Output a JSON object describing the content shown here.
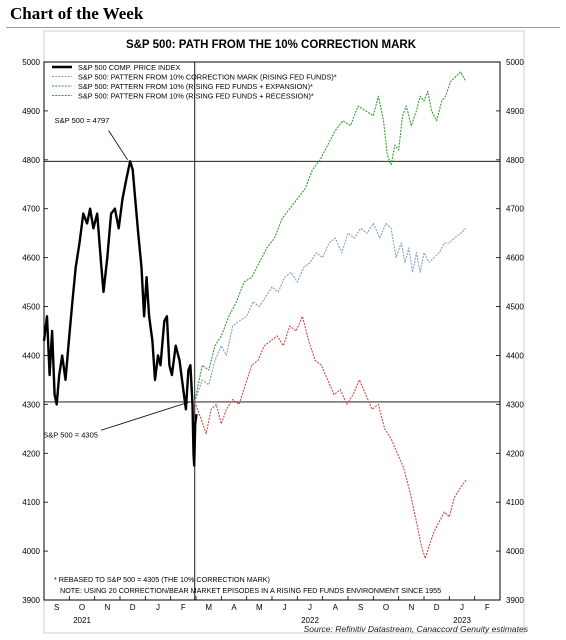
{
  "page": {
    "header": "Chart of the Week",
    "source": "Source: Refinitiv Datastream, Canaccord Genuity estimates"
  },
  "chart_data": {
    "type": "line",
    "title": "S&P 500: PATH FROM THE 10% CORRECTION MARK",
    "ylim": [
      3900,
      5000
    ],
    "yticks": [
      3900,
      4000,
      4100,
      4200,
      4300,
      4400,
      4500,
      4600,
      4700,
      4800,
      4900,
      5000
    ],
    "month_labels": [
      "S",
      "O",
      "N",
      "D",
      "J",
      "F",
      "M",
      "A",
      "M",
      "J",
      "J",
      "A",
      "S",
      "O",
      "N",
      "D",
      "J",
      "F"
    ],
    "year_labels": [
      {
        "month_index": 1,
        "text": "2021"
      },
      {
        "month_index": 10,
        "text": "2022"
      },
      {
        "month_index": 16,
        "text": "2023"
      }
    ],
    "reference_lines": {
      "horizontal": [
        4797,
        4305
      ],
      "vertical_month_index": 5.95
    },
    "annotations": [
      {
        "text": "S&P 500 = 4797",
        "month_index": 1.5,
        "value": 4875
      },
      {
        "text": "S&P 500 = 4305",
        "month_index": 1.05,
        "value": 4232
      }
    ],
    "footnotes": [
      "* REBASED TO S&P 500 = 4305 (THE 10% CORRECTION MARK)",
      "NOTE: USING 20 CORRECTION/BEAR MARKET EPISODES IN A RISING FED FUNDS ENVIRONMENT SINCE 1955"
    ],
    "series": [
      {
        "name": "S&P 500 COMP. PRICE INDEX",
        "color": "#000000",
        "points": [
          [
            0.0,
            4430
          ],
          [
            0.12,
            4480
          ],
          [
            0.22,
            4360
          ],
          [
            0.32,
            4450
          ],
          [
            0.42,
            4320
          ],
          [
            0.5,
            4300
          ],
          [
            0.6,
            4360
          ],
          [
            0.72,
            4400
          ],
          [
            0.85,
            4350
          ],
          [
            1.0,
            4440
          ],
          [
            1.12,
            4510
          ],
          [
            1.25,
            4580
          ],
          [
            1.4,
            4630
          ],
          [
            1.55,
            4690
          ],
          [
            1.7,
            4670
          ],
          [
            1.82,
            4700
          ],
          [
            1.95,
            4660
          ],
          [
            2.1,
            4690
          ],
          [
            2.25,
            4590
          ],
          [
            2.35,
            4530
          ],
          [
            2.5,
            4600
          ],
          [
            2.65,
            4690
          ],
          [
            2.8,
            4700
          ],
          [
            2.95,
            4660
          ],
          [
            3.1,
            4720
          ],
          [
            3.25,
            4760
          ],
          [
            3.4,
            4797
          ],
          [
            3.5,
            4780
          ],
          [
            3.6,
            4720
          ],
          [
            3.72,
            4650
          ],
          [
            3.85,
            4580
          ],
          [
            3.95,
            4480
          ],
          [
            4.05,
            4560
          ],
          [
            4.15,
            4480
          ],
          [
            4.28,
            4430
          ],
          [
            4.38,
            4350
          ],
          [
            4.5,
            4400
          ],
          [
            4.6,
            4380
          ],
          [
            4.75,
            4470
          ],
          [
            4.85,
            4480
          ],
          [
            4.95,
            4380
          ],
          [
            5.05,
            4360
          ],
          [
            5.2,
            4420
          ],
          [
            5.35,
            4390
          ],
          [
            5.5,
            4330
          ],
          [
            5.6,
            4290
          ],
          [
            5.7,
            4370
          ],
          [
            5.78,
            4380
          ],
          [
            5.86,
            4300
          ],
          [
            5.9,
            4200
          ],
          [
            5.93,
            4175
          ],
          [
            5.97,
            4260
          ],
          [
            6.02,
            4280
          ]
        ]
      },
      {
        "name": "S&P 500: PATTERN FROM 10% CORRECTION MARK (RISING FED FUNDS)*",
        "color": "#7f9fc8",
        "points": [
          [
            5.95,
            4305
          ],
          [
            6.25,
            4350
          ],
          [
            6.5,
            4340
          ],
          [
            6.75,
            4390
          ],
          [
            7.0,
            4420
          ],
          [
            7.2,
            4400
          ],
          [
            7.45,
            4460
          ],
          [
            7.7,
            4470
          ],
          [
            8.0,
            4480
          ],
          [
            8.25,
            4510
          ],
          [
            8.5,
            4500
          ],
          [
            8.75,
            4520
          ],
          [
            9.0,
            4540
          ],
          [
            9.25,
            4530
          ],
          [
            9.5,
            4560
          ],
          [
            9.75,
            4570
          ],
          [
            10.0,
            4550
          ],
          [
            10.25,
            4580
          ],
          [
            10.5,
            4590
          ],
          [
            10.75,
            4610
          ],
          [
            11.0,
            4600
          ],
          [
            11.25,
            4630
          ],
          [
            11.5,
            4640
          ],
          [
            11.75,
            4610
          ],
          [
            12.0,
            4650
          ],
          [
            12.25,
            4640
          ],
          [
            12.5,
            4660
          ],
          [
            12.75,
            4650
          ],
          [
            13.0,
            4670
          ],
          [
            13.25,
            4640
          ],
          [
            13.5,
            4670
          ],
          [
            13.7,
            4660
          ],
          [
            13.9,
            4600
          ],
          [
            14.1,
            4630
          ],
          [
            14.25,
            4590
          ],
          [
            14.4,
            4620
          ],
          [
            14.55,
            4570
          ],
          [
            14.7,
            4610
          ],
          [
            14.85,
            4570
          ],
          [
            15.0,
            4610
          ],
          [
            15.2,
            4590
          ],
          [
            15.4,
            4600
          ],
          [
            15.6,
            4610
          ],
          [
            15.8,
            4630
          ],
          [
            16.0,
            4630
          ],
          [
            16.2,
            4640
          ],
          [
            16.45,
            4650
          ],
          [
            16.65,
            4660
          ]
        ]
      },
      {
        "name": "S&P 500: PATTERN FROM 10% (RISING FED FUNDS + EXPANSION)*",
        "color": "#2e9e2e",
        "points": [
          [
            5.95,
            4305
          ],
          [
            6.25,
            4380
          ],
          [
            6.5,
            4370
          ],
          [
            6.75,
            4420
          ],
          [
            7.0,
            4440
          ],
          [
            7.3,
            4480
          ],
          [
            7.6,
            4510
          ],
          [
            7.9,
            4550
          ],
          [
            8.2,
            4560
          ],
          [
            8.5,
            4590
          ],
          [
            8.8,
            4620
          ],
          [
            9.1,
            4640
          ],
          [
            9.4,
            4680
          ],
          [
            9.7,
            4700
          ],
          [
            10.0,
            4720
          ],
          [
            10.3,
            4740
          ],
          [
            10.6,
            4780
          ],
          [
            10.9,
            4800
          ],
          [
            11.2,
            4830
          ],
          [
            11.5,
            4860
          ],
          [
            11.8,
            4880
          ],
          [
            12.1,
            4870
          ],
          [
            12.4,
            4910
          ],
          [
            12.7,
            4900
          ],
          [
            13.0,
            4890
          ],
          [
            13.2,
            4930
          ],
          [
            13.4,
            4880
          ],
          [
            13.55,
            4810
          ],
          [
            13.7,
            4790
          ],
          [
            13.85,
            4830
          ],
          [
            14.0,
            4820
          ],
          [
            14.15,
            4890
          ],
          [
            14.3,
            4910
          ],
          [
            14.5,
            4870
          ],
          [
            14.7,
            4900
          ],
          [
            14.85,
            4930
          ],
          [
            15.0,
            4920
          ],
          [
            15.15,
            4940
          ],
          [
            15.3,
            4900
          ],
          [
            15.5,
            4880
          ],
          [
            15.7,
            4920
          ],
          [
            15.85,
            4930
          ],
          [
            16.05,
            4960
          ],
          [
            16.25,
            4970
          ],
          [
            16.45,
            4980
          ],
          [
            16.65,
            4960
          ]
        ]
      },
      {
        "name": "S&P 500: PATTERN FROM 10% (RISING FED FUNDS + RECESSION)*",
        "color": "#d64545",
        "points": [
          [
            5.95,
            4305
          ],
          [
            6.2,
            4270
          ],
          [
            6.4,
            4240
          ],
          [
            6.6,
            4290
          ],
          [
            6.8,
            4300
          ],
          [
            7.0,
            4260
          ],
          [
            7.2,
            4290
          ],
          [
            7.45,
            4310
          ],
          [
            7.7,
            4300
          ],
          [
            7.95,
            4340
          ],
          [
            8.2,
            4380
          ],
          [
            8.45,
            4390
          ],
          [
            8.7,
            4420
          ],
          [
            8.95,
            4430
          ],
          [
            9.2,
            4440
          ],
          [
            9.45,
            4420
          ],
          [
            9.7,
            4460
          ],
          [
            9.95,
            4450
          ],
          [
            10.2,
            4480
          ],
          [
            10.45,
            4430
          ],
          [
            10.7,
            4390
          ],
          [
            10.95,
            4380
          ],
          [
            11.2,
            4350
          ],
          [
            11.45,
            4320
          ],
          [
            11.7,
            4330
          ],
          [
            11.95,
            4300
          ],
          [
            12.2,
            4320
          ],
          [
            12.45,
            4350
          ],
          [
            12.7,
            4320
          ],
          [
            12.95,
            4290
          ],
          [
            13.2,
            4300
          ],
          [
            13.45,
            4250
          ],
          [
            13.7,
            4230
          ],
          [
            13.95,
            4200
          ],
          [
            14.2,
            4170
          ],
          [
            14.45,
            4120
          ],
          [
            14.7,
            4060
          ],
          [
            14.9,
            4010
          ],
          [
            15.05,
            3985
          ],
          [
            15.2,
            4010
          ],
          [
            15.4,
            4040
          ],
          [
            15.6,
            4060
          ],
          [
            15.8,
            4080
          ],
          [
            16.0,
            4070
          ],
          [
            16.2,
            4110
          ],
          [
            16.45,
            4130
          ],
          [
            16.65,
            4145
          ]
        ]
      }
    ]
  }
}
